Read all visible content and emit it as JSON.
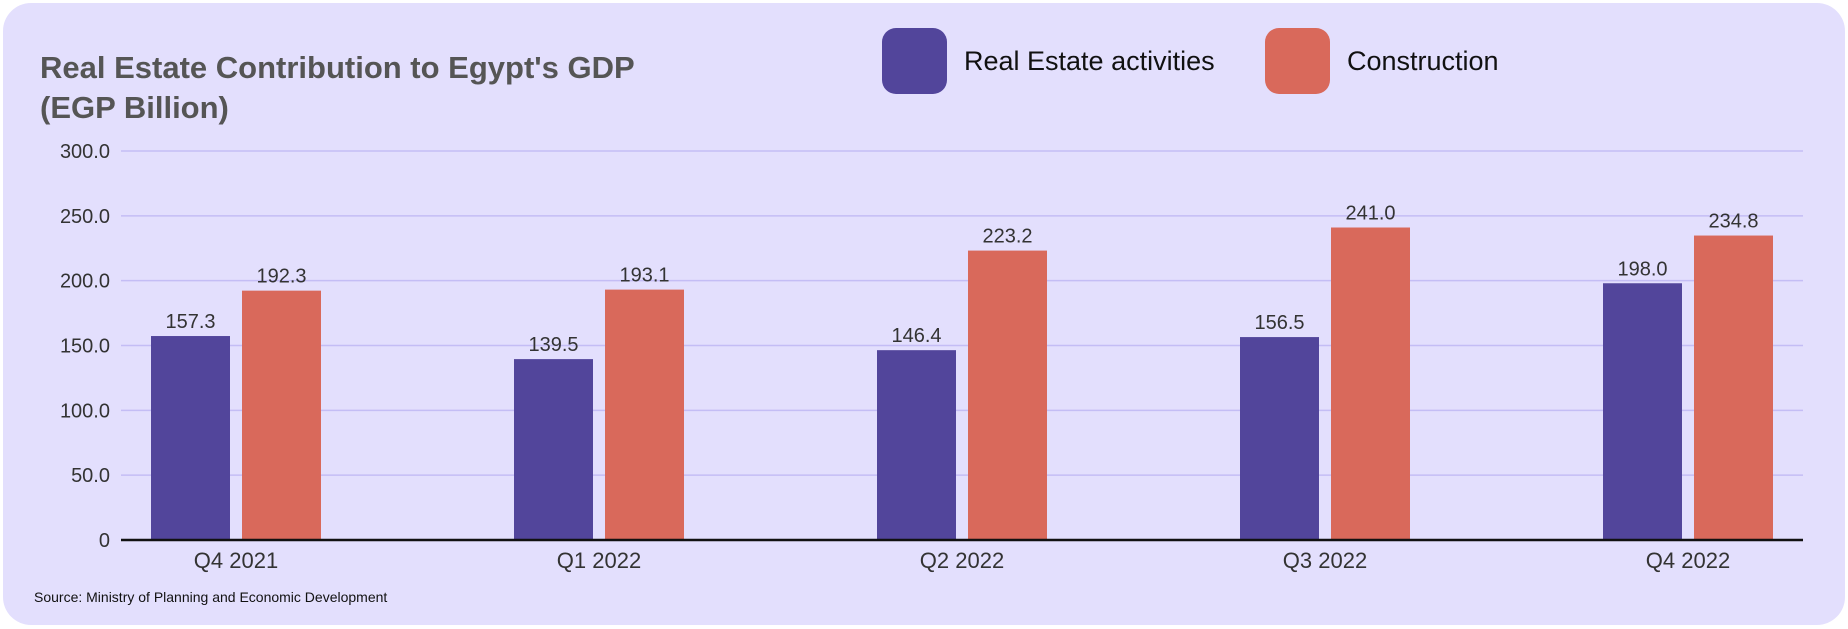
{
  "chart_data": {
    "type": "bar",
    "title": "Real Estate Contribution to Egypt's GDP",
    "subtitle": "(EGP Billion)",
    "categories": [
      "Q4 2021",
      "Q1 2022",
      "Q2 2022",
      "Q3 2022",
      "Q4 2022"
    ],
    "series": [
      {
        "name": "Real Estate activities",
        "color": "#52459b",
        "values": [
          157.3,
          139.5,
          146.4,
          156.5,
          198.0
        ]
      },
      {
        "name": "Construction",
        "color": "#d9695b",
        "values": [
          192.3,
          193.1,
          223.2,
          241.0,
          234.8
        ]
      }
    ],
    "yticks": [
      "0",
      "50.0",
      "100.0",
      "150.0",
      "200.0",
      "250.0",
      "300.0"
    ],
    "ylim": [
      0,
      300
    ],
    "grid": true,
    "legend_position": "top-right",
    "source": "Source: Ministry of Planning and Economic Development"
  },
  "colors": {
    "background": "#e3dffd",
    "grid": "#c4bdf5",
    "title": "#555555"
  }
}
